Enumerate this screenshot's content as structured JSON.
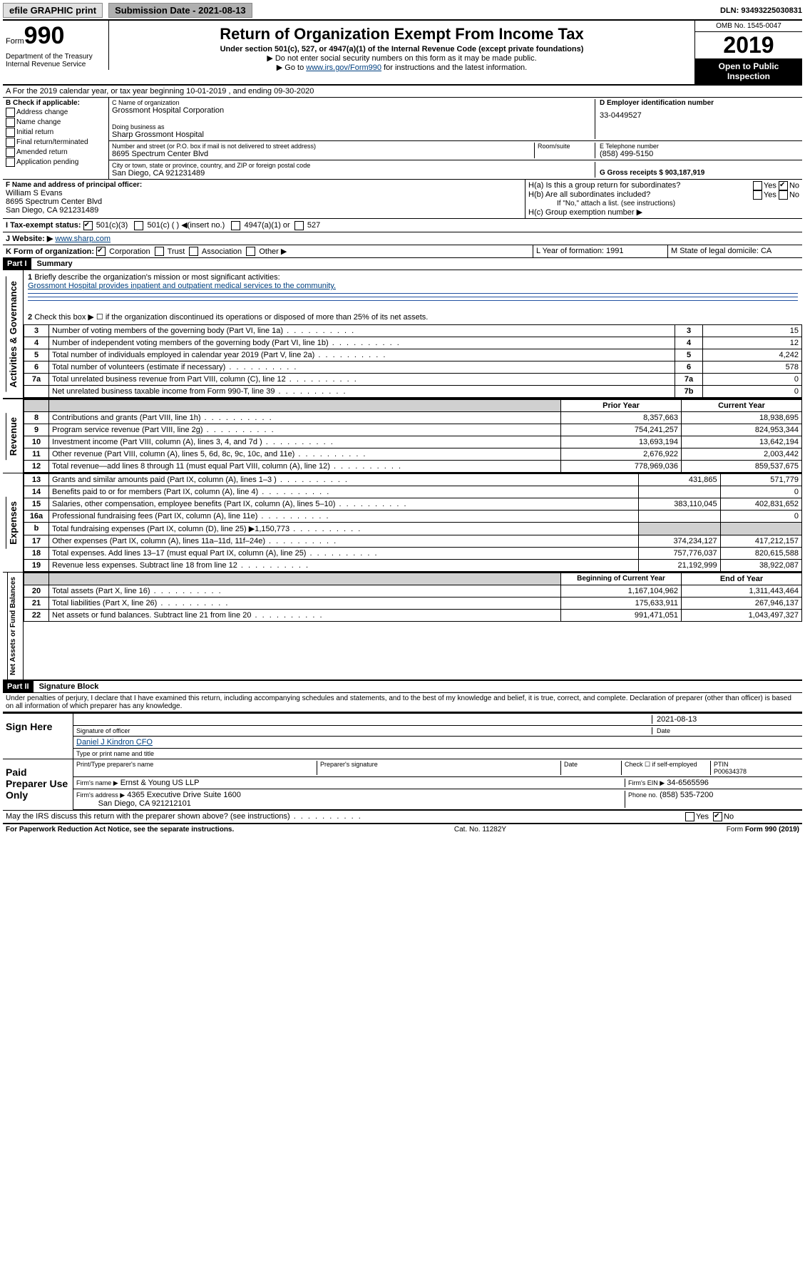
{
  "topbar": {
    "efile": "efile GRAPHIC print",
    "submission_label": "Submission Date - 2021-08-13",
    "dln": "DLN: 93493225030831"
  },
  "header": {
    "form_prefix": "Form",
    "form_number": "990",
    "title": "Return of Organization Exempt From Income Tax",
    "subtitle": "Under section 501(c), 527, or 4947(a)(1) of the Internal Revenue Code (except private foundations)",
    "instr1": "▶ Do not enter social security numbers on this form as it may be made public.",
    "instr2_prefix": "▶ Go to ",
    "instr2_link": "www.irs.gov/Form990",
    "instr2_suffix": " for instructions and the latest information.",
    "omb": "OMB No. 1545-0047",
    "year": "2019",
    "open_public": "Open to Public Inspection",
    "dept": "Department of the Treasury",
    "irs": "Internal Revenue Service"
  },
  "lineA": {
    "text": "A For the 2019 calendar year, or tax year beginning 10-01-2019    , and ending 09-30-2020"
  },
  "boxB": {
    "label": "B Check if applicable:",
    "opts": [
      "Address change",
      "Name change",
      "Initial return",
      "Final return/terminated",
      "Amended return",
      "Application pending"
    ]
  },
  "boxC": {
    "name_label": "C Name of organization",
    "name": "Grossmont Hospital Corporation",
    "dba_label": "Doing business as",
    "dba": "Sharp Grossmont Hospital",
    "addr_label": "Number and street (or P.O. box if mail is not delivered to street address)",
    "room_label": "Room/suite",
    "addr": "8695 Spectrum Center Blvd",
    "city_label": "City or town, state or province, country, and ZIP or foreign postal code",
    "city": "San Diego, CA  921231489"
  },
  "boxD": {
    "label": "D Employer identification number",
    "val": "33-0449527"
  },
  "boxE": {
    "label": "E Telephone number",
    "val": "(858) 499-5150"
  },
  "boxG": {
    "label": "G Gross receipts $ 903,187,919"
  },
  "boxF": {
    "label": "F Name and address of principal officer:",
    "name": "William S Evans",
    "addr1": "8695 Spectrum Center Blvd",
    "addr2": "San Diego, CA  921231489"
  },
  "boxH": {
    "a": "H(a)  Is this a group return for subordinates?",
    "b": "H(b)  Are all subordinates included?",
    "note": "If \"No,\" attach a list. (see instructions)",
    "c": "H(c)  Group exemption number ▶",
    "yes": "Yes",
    "no": "No"
  },
  "boxI": {
    "label": "I  Tax-exempt status:",
    "c3": "501(c)(3)",
    "c": "501(c) (   ) ◀(insert no.)",
    "a1": "4947(a)(1) or",
    "s527": "527"
  },
  "boxJ": {
    "label": "J  Website: ▶",
    "val": "www.sharp.com"
  },
  "boxK": {
    "label": "K Form of organization:",
    "corp": "Corporation",
    "trust": "Trust",
    "assoc": "Association",
    "other": "Other ▶"
  },
  "boxL": {
    "label": "L Year of formation: 1991"
  },
  "boxM": {
    "label": "M State of legal domicile: CA"
  },
  "part1": {
    "header": "Part I",
    "title": "Summary",
    "side1": "Activities & Governance",
    "side2": "Revenue",
    "side3": "Expenses",
    "side4": "Net Assets or Fund Balances",
    "q1": "Briefly describe the organization's mission or most significant activities:",
    "q1_ans": "Grossmont Hospital provides inpatient and outpatient medical services to the community.",
    "q2": "Check this box ▶ ☐  if the organization discontinued its operations or disposed of more than 25% of its net assets.",
    "rows_gov": [
      {
        "n": "3",
        "t": "Number of voting members of the governing body (Part VI, line 1a)",
        "a": "3",
        "v": "15"
      },
      {
        "n": "4",
        "t": "Number of independent voting members of the governing body (Part VI, line 1b)",
        "a": "4",
        "v": "12"
      },
      {
        "n": "5",
        "t": "Total number of individuals employed in calendar year 2019 (Part V, line 2a)",
        "a": "5",
        "v": "4,242"
      },
      {
        "n": "6",
        "t": "Total number of volunteers (estimate if necessary)",
        "a": "6",
        "v": "578"
      },
      {
        "n": "7a",
        "t": "Total unrelated business revenue from Part VIII, column (C), line 12",
        "a": "7a",
        "v": "0"
      },
      {
        "n": " ",
        "t": "Net unrelated business taxable income from Form 990-T, line 39",
        "a": "7b",
        "v": "0"
      }
    ],
    "col_prior": "Prior Year",
    "col_current": "Current Year",
    "col_beg": "Beginning of Current Year",
    "col_end": "End of Year",
    "rows_rev": [
      {
        "n": "8",
        "t": "Contributions and grants (Part VIII, line 1h)",
        "p": "8,357,663",
        "c": "18,938,695"
      },
      {
        "n": "9",
        "t": "Program service revenue (Part VIII, line 2g)",
        "p": "754,241,257",
        "c": "824,953,344"
      },
      {
        "n": "10",
        "t": "Investment income (Part VIII, column (A), lines 3, 4, and 7d )",
        "p": "13,693,194",
        "c": "13,642,194"
      },
      {
        "n": "11",
        "t": "Other revenue (Part VIII, column (A), lines 5, 6d, 8c, 9c, 10c, and 11e)",
        "p": "2,676,922",
        "c": "2,003,442"
      },
      {
        "n": "12",
        "t": "Total revenue—add lines 8 through 11 (must equal Part VIII, column (A), line 12)",
        "p": "778,969,036",
        "c": "859,537,675"
      }
    ],
    "rows_exp": [
      {
        "n": "13",
        "t": "Grants and similar amounts paid (Part IX, column (A), lines 1–3 )",
        "p": "431,865",
        "c": "571,779"
      },
      {
        "n": "14",
        "t": "Benefits paid to or for members (Part IX, column (A), line 4)",
        "p": "",
        "c": "0"
      },
      {
        "n": "15",
        "t": "Salaries, other compensation, employee benefits (Part IX, column (A), lines 5–10)",
        "p": "383,110,045",
        "c": "402,831,652"
      },
      {
        "n": "16a",
        "t": "Professional fundraising fees (Part IX, column (A), line 11e)",
        "p": "",
        "c": "0"
      },
      {
        "n": "b",
        "t": "Total fundraising expenses (Part IX, column (D), line 25) ▶1,150,773",
        "p": "shaded",
        "c": "shaded"
      },
      {
        "n": "17",
        "t": "Other expenses (Part IX, column (A), lines 11a–11d, 11f–24e)",
        "p": "374,234,127",
        "c": "417,212,157"
      },
      {
        "n": "18",
        "t": "Total expenses. Add lines 13–17 (must equal Part IX, column (A), line 25)",
        "p": "757,776,037",
        "c": "820,615,588"
      },
      {
        "n": "19",
        "t": "Revenue less expenses. Subtract line 18 from line 12",
        "p": "21,192,999",
        "c": "38,922,087"
      }
    ],
    "rows_net": [
      {
        "n": "20",
        "t": "Total assets (Part X, line 16)",
        "p": "1,167,104,962",
        "c": "1,311,443,464"
      },
      {
        "n": "21",
        "t": "Total liabilities (Part X, line 26)",
        "p": "175,633,911",
        "c": "267,946,137"
      },
      {
        "n": "22",
        "t": "Net assets or fund balances. Subtract line 21 from line 20",
        "p": "991,471,051",
        "c": "1,043,497,327"
      }
    ]
  },
  "part2": {
    "header": "Part II",
    "title": "Signature Block",
    "perjury": "Under penalties of perjury, I declare that I have examined this return, including accompanying schedules and statements, and to the best of my knowledge and belief, it is true, correct, and complete. Declaration of preparer (other than officer) is based on all information of which preparer has any knowledge.",
    "sign_here": "Sign Here",
    "sig_officer": "Signature of officer",
    "date": "Date",
    "date_val": "2021-08-13",
    "officer_name": "Daniel J Kindron  CFO",
    "type_name": "Type or print name and title",
    "paid": "Paid Preparer Use Only",
    "prep_name_label": "Print/Type preparer's name",
    "prep_sig_label": "Preparer's signature",
    "date_label": "Date",
    "check_self": "Check ☐ if self-employed",
    "ptin_label": "PTIN",
    "ptin": "P00634378",
    "firm_name_label": "Firm's name     ▶",
    "firm_name": "Ernst & Young US LLP",
    "firm_ein_label": "Firm's EIN ▶",
    "firm_ein": "34-6565596",
    "firm_addr_label": "Firm's address ▶",
    "firm_addr1": "4365 Executive Drive Suite 1600",
    "firm_addr2": "San Diego, CA  921212101",
    "firm_phone_label": "Phone no.",
    "firm_phone": "(858) 535-7200",
    "discuss": "May the IRS discuss this return with the preparer shown above? (see instructions)",
    "yes": "Yes",
    "no": "No"
  },
  "footer": {
    "pra": "For Paperwork Reduction Act Notice, see the separate instructions.",
    "cat": "Cat. No. 11282Y",
    "form": "Form 990 (2019)"
  }
}
